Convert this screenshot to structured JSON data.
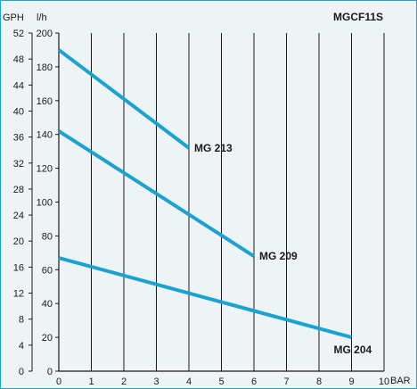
{
  "chart_data": {
    "type": "line",
    "title": "MGCF11S",
    "xlabel": "BAR",
    "ylabel": "l/h",
    "y2label": "GPH",
    "xlim": [
      0,
      10
    ],
    "ylim": [
      0,
      200
    ],
    "y2lim": [
      0,
      52
    ],
    "x_ticks": [
      "0",
      "1",
      "2",
      "3",
      "4",
      "5",
      "6",
      "7",
      "8",
      "9",
      "10"
    ],
    "y_ticks": [
      "0",
      "20",
      "40",
      "60",
      "80",
      "100",
      "120",
      "140",
      "160",
      "180",
      "200"
    ],
    "y2_ticks": [
      "0",
      "4",
      "8",
      "12",
      "16",
      "20",
      "24",
      "28",
      "32",
      "36",
      "40",
      "44",
      "48",
      "52"
    ],
    "grid": true,
    "series": [
      {
        "name": "MG 213",
        "x": [
          0,
          4
        ],
        "y": [
          190,
          132
        ]
      },
      {
        "name": "MG 209",
        "x": [
          0,
          6
        ],
        "y": [
          142,
          68
        ]
      },
      {
        "name": "MG 204",
        "x": [
          0,
          9
        ],
        "y": [
          67,
          20
        ]
      }
    ],
    "line_color": "#1aa3cf"
  }
}
